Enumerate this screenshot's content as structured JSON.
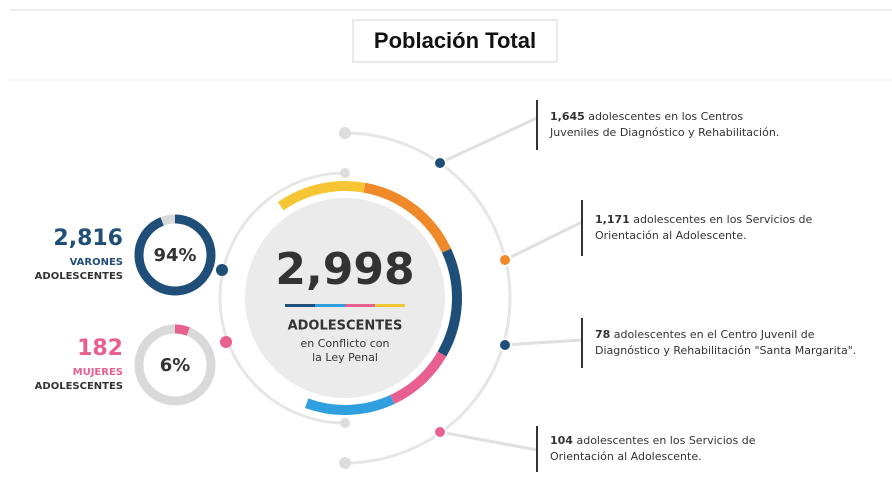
{
  "title": "Población Total",
  "center": {
    "total": "2,998",
    "label": "ADOLESCENTES",
    "sublabel_lines": [
      "en Conflicto con",
      "la Ley Penal"
    ]
  },
  "groups": [
    {
      "count": "2,816",
      "label_lines": [
        "VARONES",
        "ADOLESCENTES"
      ],
      "percent": {
        "value": 94,
        "label": "94%"
      }
    },
    {
      "count": "182",
      "label_lines": [
        "MUJERES",
        "ADOLESCENTES"
      ],
      "percent": {
        "value": 6,
        "label": "6%"
      }
    }
  ],
  "centers": [
    {
      "count": "1,645",
      "text_lines": [
        " adolescentes en los Centros",
        "Juveniles de Diagnóstico y Rehabilitación."
      ]
    },
    {
      "count": "1,171",
      "text_lines": [
        " adolescentes en los Servicios de",
        "Orientación al Adolescente."
      ]
    },
    {
      "count": "78",
      "text_lines": [
        " adolescentes en el Centro Juvenil de",
        "Diagnóstico y Rehabilitación \"Santa Margarita\"."
      ]
    },
    {
      "count": "104",
      "text_lines": [
        " adolescentes en los Servicios de",
        "Orientación al Adolescente."
      ]
    }
  ]
}
